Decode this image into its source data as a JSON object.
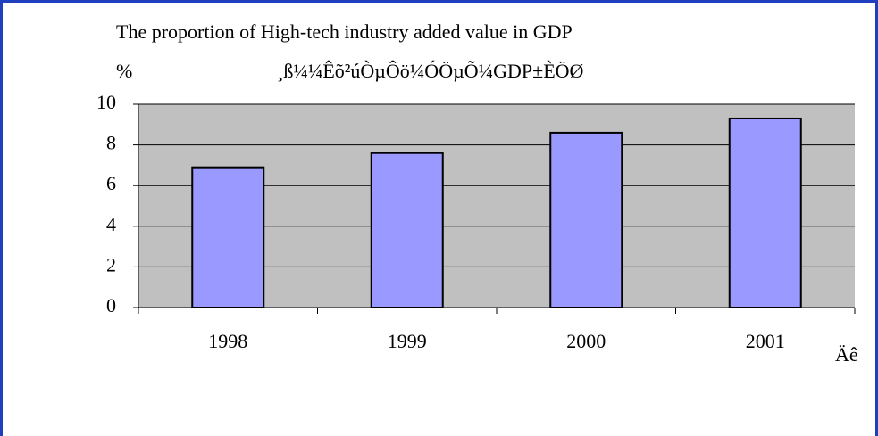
{
  "chart_data": {
    "type": "bar",
    "title": "The proportion of High-tech industry added value in GDP",
    "subtitle": "¸ß¼¼Êõ²úÒµÔö¼ÓÖµÕ¼GDP±ÈÖØ",
    "y_label": "%",
    "x_label": "Äê",
    "categories": [
      "1998",
      "1999",
      "2000",
      "2001"
    ],
    "values": [
      6.9,
      7.6,
      8.6,
      9.3
    ],
    "color": "#9999ff",
    "plot_background": "#c0c0c0",
    "ylim": [
      0,
      10
    ],
    "yticks": [
      0,
      2,
      4,
      6,
      8,
      10
    ],
    "grid": true
  }
}
